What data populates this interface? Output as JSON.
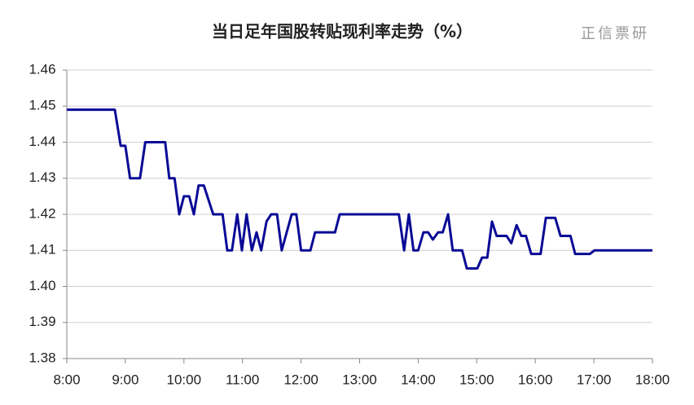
{
  "chart_data": {
    "type": "line",
    "title": "当日足年国股转贴现利率走势（%）",
    "watermark": "正信票研",
    "x": [
      8.0,
      8.82,
      8.92,
      9.0,
      9.08,
      9.25,
      9.34,
      9.68,
      9.75,
      9.84,
      9.92,
      10.0,
      10.09,
      10.17,
      10.25,
      10.34,
      10.5,
      10.66,
      10.74,
      10.82,
      10.91,
      10.99,
      11.07,
      11.16,
      11.24,
      11.32,
      11.41,
      11.49,
      11.59,
      11.67,
      11.84,
      11.92,
      12.0,
      12.16,
      12.24,
      12.58,
      12.66,
      13.67,
      13.76,
      13.84,
      13.92,
      14.0,
      14.09,
      14.17,
      14.25,
      14.34,
      14.42,
      14.51,
      14.59,
      14.75,
      14.83,
      15.01,
      15.09,
      15.18,
      15.26,
      15.34,
      15.51,
      15.59,
      15.68,
      15.76,
      15.84,
      15.93,
      16.09,
      16.18,
      16.34,
      16.43,
      16.6,
      16.68,
      16.93,
      17.01,
      18.0
    ],
    "series": [
      {
        "color": "#0a0a96",
        "values": [
          1.449,
          1.449,
          1.439,
          1.439,
          1.43,
          1.43,
          1.44,
          1.44,
          1.43,
          1.43,
          1.42,
          1.425,
          1.425,
          1.42,
          1.428,
          1.428,
          1.42,
          1.42,
          1.41,
          1.41,
          1.42,
          1.41,
          1.42,
          1.41,
          1.415,
          1.41,
          1.418,
          1.42,
          1.42,
          1.41,
          1.42,
          1.42,
          1.41,
          1.41,
          1.415,
          1.415,
          1.42,
          1.42,
          1.41,
          1.42,
          1.41,
          1.41,
          1.415,
          1.415,
          1.413,
          1.415,
          1.415,
          1.42,
          1.41,
          1.41,
          1.405,
          1.405,
          1.408,
          1.408,
          1.418,
          1.414,
          1.414,
          1.412,
          1.417,
          1.414,
          1.414,
          1.409,
          1.409,
          1.419,
          1.419,
          1.414,
          1.414,
          1.409,
          1.409,
          1.41,
          1.41
        ]
      }
    ],
    "xlim": [
      8,
      18
    ],
    "xticks": [
      {
        "value": 8,
        "label": "8:00"
      },
      {
        "value": 9,
        "label": "9:00"
      },
      {
        "value": 10,
        "label": "10:00"
      },
      {
        "value": 11,
        "label": "11:00"
      },
      {
        "value": 12,
        "label": "12:00"
      },
      {
        "value": 13,
        "label": "13:00"
      },
      {
        "value": 14,
        "label": "14:00"
      },
      {
        "value": 15,
        "label": "15:00"
      },
      {
        "value": 16,
        "label": "16:00"
      },
      {
        "value": 17,
        "label": "17:00"
      },
      {
        "value": 18,
        "label": "18:00"
      }
    ],
    "ylim": [
      1.38,
      1.46
    ],
    "yticks": [
      1.38,
      1.39,
      {
        "value": 1.4,
        "label": "1.40"
      },
      1.41,
      1.42,
      1.43,
      1.44,
      1.45,
      1.46
    ],
    "grid": true
  }
}
